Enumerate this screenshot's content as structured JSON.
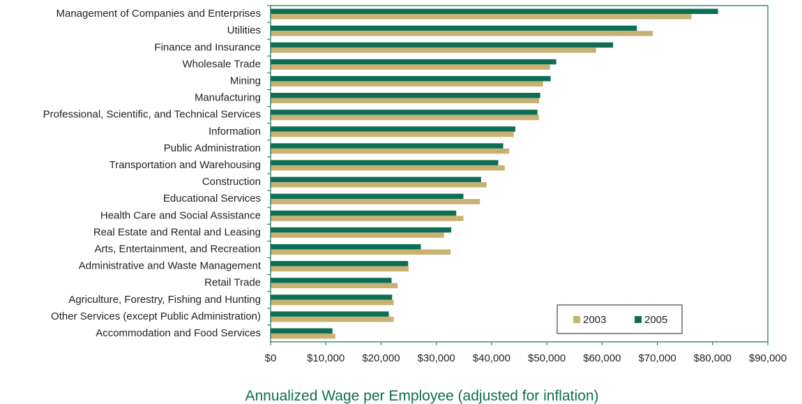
{
  "chart_data": {
    "type": "bar",
    "orientation": "horizontal",
    "title": "",
    "xlabel": "Annualized Wage per Employee (adjusted for inflation)",
    "ylabel": "",
    "xlim": [
      0,
      90000
    ],
    "x_ticks": [
      {
        "value": 0,
        "label": "$0"
      },
      {
        "value": 10000,
        "label": "$10,000"
      },
      {
        "value": 20000,
        "label": "$20,000"
      },
      {
        "value": 30000,
        "label": "$30,000"
      },
      {
        "value": 40000,
        "label": "$40,000"
      },
      {
        "value": 50000,
        "label": "$50,000"
      },
      {
        "value": 60000,
        "label": "$60,000"
      },
      {
        "value": 70000,
        "label": "$70,000"
      },
      {
        "value": 80000,
        "label": "$80,000"
      },
      {
        "value": 90000,
        "label": "$90,000"
      }
    ],
    "grid": false,
    "legend_position": "bottom-right",
    "categories": [
      "Management of Companies and Enterprises",
      "Utilities",
      "Finance and Insurance",
      "Wholesale Trade",
      "Mining",
      "Manufacturing",
      "Professional, Scientific, and Technical Services",
      "Information",
      "Public Administration",
      "Transportation and Warehousing",
      "Construction",
      "Educational Services",
      "Health Care and Social Assistance",
      "Real Estate and Rental and Leasing",
      "Arts, Entertainment, and Recreation",
      "Administrative and Waste Management",
      "Retail Trade",
      "Agriculture, Forestry, Fishing and Hunting",
      "Other Services (except Public Administration)",
      "Accommodation and Food Services"
    ],
    "series": [
      {
        "name": "2003",
        "color": "#c8b273",
        "values": [
          76200,
          69200,
          58900,
          50600,
          49300,
          48600,
          48600,
          44000,
          43200,
          42400,
          39100,
          37900,
          34900,
          31400,
          32600,
          25000,
          23000,
          22300,
          22300,
          11700
        ]
      },
      {
        "name": "2005",
        "color": "#0e6e55",
        "values": [
          81000,
          66300,
          62000,
          51700,
          50700,
          48800,
          48300,
          44300,
          42100,
          41200,
          38100,
          34900,
          33600,
          32700,
          27200,
          24900,
          21900,
          22000,
          21400,
          11200
        ]
      }
    ],
    "colors": {
      "axis": "#0e6e55",
      "xlabel": "#0e6e55"
    }
  }
}
